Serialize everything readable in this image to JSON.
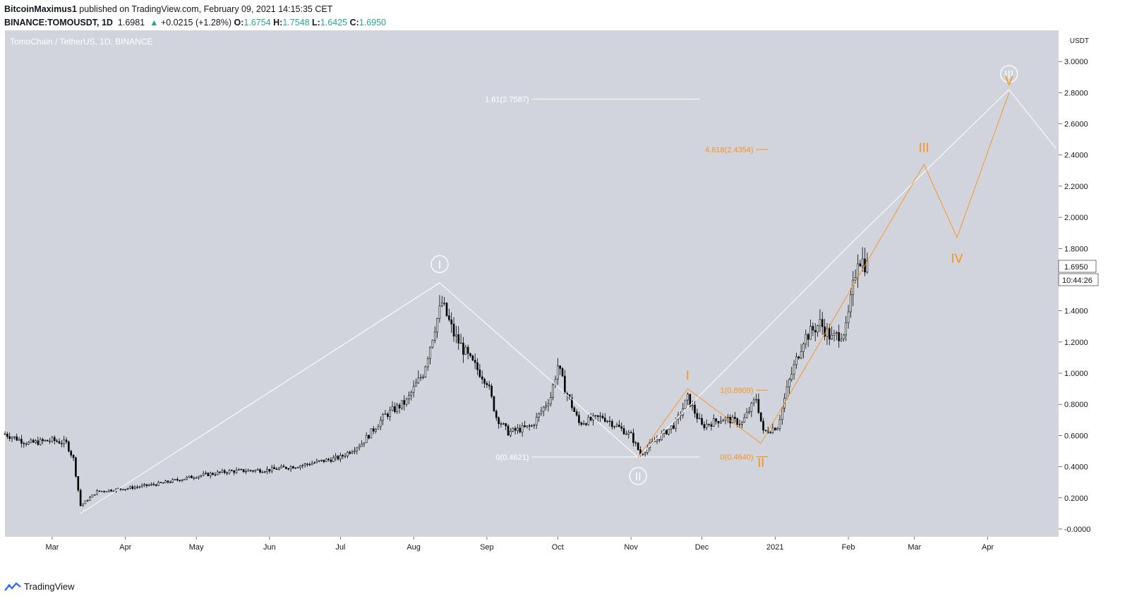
{
  "header": {
    "publisher_name": "BitcoinMaximus1",
    "publisher_text": "published on TradingView.com, February 09, 2021 14:15:35 CET",
    "symbol": "BINANCE:TOMOUSDT, 1D",
    "last": "1.6981",
    "change_arrow": "▲",
    "change": "+0.0215 (+1.28%)",
    "o_label": "O:",
    "o": "1.6754",
    "h_label": "H:",
    "h": "1.7548",
    "l_label": "L:",
    "l": "1.6425",
    "c_label": "C:",
    "c": "1.6950"
  },
  "pane": {
    "legend": "TomoChain / TetherUS, 1D, BINANCE",
    "axis_unit": "USDT",
    "price_label": "1.6950",
    "countdown": "10:44:26",
    "background": "#d1d4dc"
  },
  "footer": {
    "brand": "TradingView"
  },
  "colors": {
    "candle": "#000000",
    "white_count": "#ffffff",
    "orange_count": "#f7931a",
    "text": "#131722"
  },
  "chart_data": {
    "type": "candlestick",
    "title": "TomoChain / TetherUS, 1D, BINANCE",
    "ylabel": "USDT",
    "ylim": [
      -0.05,
      3.2
    ],
    "xlim": [
      "2020-02-10",
      "2021-05-01"
    ],
    "y_ticks": [
      "3.0000",
      "2.8000",
      "2.6000",
      "2.4000",
      "2.2000",
      "2.0000",
      "1.8000",
      "1.6000",
      "1.4000",
      "1.2000",
      "1.0000",
      "0.8000",
      "0.6000",
      "0.4000",
      "0.2000",
      "-0.0000"
    ],
    "x_ticks": [
      {
        "label": "Mar",
        "date": "2020-03-01"
      },
      {
        "label": "Apr",
        "date": "2020-04-01"
      },
      {
        "label": "May",
        "date": "2020-05-01"
      },
      {
        "label": "Jun",
        "date": "2020-06-01"
      },
      {
        "label": "Jul",
        "date": "2020-07-01"
      },
      {
        "label": "Aug",
        "date": "2020-08-01"
      },
      {
        "label": "Sep",
        "date": "2020-09-01"
      },
      {
        "label": "Oct",
        "date": "2020-10-01"
      },
      {
        "label": "Nov",
        "date": "2020-11-01"
      },
      {
        "label": "Dec",
        "date": "2020-12-01"
      },
      {
        "label": "2021",
        "date": "2021-01-01"
      },
      {
        "label": "Feb",
        "date": "2021-02-01"
      },
      {
        "label": "Mar",
        "date": "2021-03-01"
      },
      {
        "label": "Apr",
        "date": "2021-04-01"
      }
    ],
    "price_path": [
      [
        "2020-02-10",
        0.61
      ],
      [
        "2020-02-20",
        0.55
      ],
      [
        "2020-03-01",
        0.57
      ],
      [
        "2020-03-07",
        0.55
      ],
      [
        "2020-03-10",
        0.45
      ],
      [
        "2020-03-13",
        0.15
      ],
      [
        "2020-03-20",
        0.24
      ],
      [
        "2020-04-01",
        0.26
      ],
      [
        "2020-04-15",
        0.29
      ],
      [
        "2020-05-01",
        0.34
      ],
      [
        "2020-05-15",
        0.37
      ],
      [
        "2020-06-01",
        0.38
      ],
      [
        "2020-06-15",
        0.41
      ],
      [
        "2020-07-01",
        0.46
      ],
      [
        "2020-07-10",
        0.55
      ],
      [
        "2020-07-20",
        0.73
      ],
      [
        "2020-07-29",
        0.82
      ],
      [
        "2020-08-01",
        0.9
      ],
      [
        "2020-08-05",
        1.0
      ],
      [
        "2020-08-10",
        1.3
      ],
      [
        "2020-08-13",
        1.45
      ],
      [
        "2020-08-18",
        1.25
      ],
      [
        "2020-08-25",
        1.08
      ],
      [
        "2020-09-01",
        0.95
      ],
      [
        "2020-09-05",
        0.72
      ],
      [
        "2020-09-10",
        0.62
      ],
      [
        "2020-09-20",
        0.66
      ],
      [
        "2020-09-28",
        0.85
      ],
      [
        "2020-10-01",
        1.05
      ],
      [
        "2020-10-04",
        0.9
      ],
      [
        "2020-10-10",
        0.68
      ],
      [
        "2020-10-20",
        0.72
      ],
      [
        "2020-11-01",
        0.6
      ],
      [
        "2020-11-05",
        0.48
      ],
      [
        "2020-11-10",
        0.55
      ],
      [
        "2020-11-20",
        0.68
      ],
      [
        "2020-11-25",
        0.84
      ],
      [
        "2020-11-28",
        0.75
      ],
      [
        "2020-12-01",
        0.66
      ],
      [
        "2020-12-10",
        0.71
      ],
      [
        "2020-12-18",
        0.68
      ],
      [
        "2020-12-24",
        0.84
      ],
      [
        "2020-12-27",
        0.62
      ],
      [
        "2021-01-02",
        0.66
      ],
      [
        "2021-01-07",
        0.95
      ],
      [
        "2021-01-13",
        1.22
      ],
      [
        "2021-01-20",
        1.32
      ],
      [
        "2021-01-25",
        1.22
      ],
      [
        "2021-01-31",
        1.28
      ],
      [
        "2021-02-03",
        1.55
      ],
      [
        "2021-02-05",
        1.75
      ],
      [
        "2021-02-09",
        1.69
      ]
    ],
    "last_price": 1.695,
    "white_wave_lines": [
      {
        "name": "count-1",
        "points": [
          [
            "2020-03-13",
            0.1
          ],
          [
            "2020-08-12",
            1.58
          ],
          [
            "2020-11-04",
            0.46
          ],
          [
            "2021-02-04",
            1.86
          ],
          [
            "2021-04-10",
            2.82
          ]
        ]
      },
      {
        "name": "count-2",
        "points": [
          [
            "2021-04-10",
            2.82
          ],
          [
            "2021-04-30",
            2.44
          ]
        ]
      }
    ],
    "white_wave_labels": [
      {
        "text": "I",
        "date": "2020-08-12",
        "price": 1.7
      },
      {
        "text": "II",
        "date": "2020-11-04",
        "price": 0.34
      },
      {
        "text": "III",
        "date": "2021-04-10",
        "price": 2.92
      }
    ],
    "orange_wave_line": [
      [
        "2020-11-04",
        0.46
      ],
      [
        "2020-11-25",
        0.9
      ],
      [
        "2020-12-26",
        0.55
      ],
      [
        "2021-03-05",
        2.34
      ],
      [
        "2021-03-19",
        1.87
      ],
      [
        "2021-04-10",
        2.8
      ]
    ],
    "orange_wave_labels": [
      {
        "text": "I",
        "date": "2020-11-25",
        "price": 0.99
      },
      {
        "text": "II",
        "date": "2020-12-26",
        "price": 0.43
      },
      {
        "text": "III",
        "date": "2021-03-05",
        "price": 2.45
      },
      {
        "text": "IV",
        "date": "2021-03-19",
        "price": 1.74
      },
      {
        "text": "V",
        "date": "2021-04-10",
        "price": 2.88
      }
    ],
    "white_fib_levels": [
      {
        "label": "1.61(2.7587)",
        "price": 2.7587,
        "from": "2020-09-20",
        "to": "2020-11-30"
      },
      {
        "label": "0(0.4621)",
        "price": 0.4621,
        "from": "2020-09-20",
        "to": "2020-11-30"
      }
    ],
    "orange_fib_levels": [
      {
        "label": "4.618(2.4354)",
        "price": 2.4354,
        "from": "2020-12-24",
        "to": "2020-12-29"
      },
      {
        "label": "1(0.8909)",
        "price": 0.8909,
        "from": "2020-12-24",
        "to": "2020-12-29"
      },
      {
        "label": "0(0.4640)",
        "price": 0.464,
        "from": "2020-12-24",
        "to": "2020-12-29"
      }
    ]
  }
}
